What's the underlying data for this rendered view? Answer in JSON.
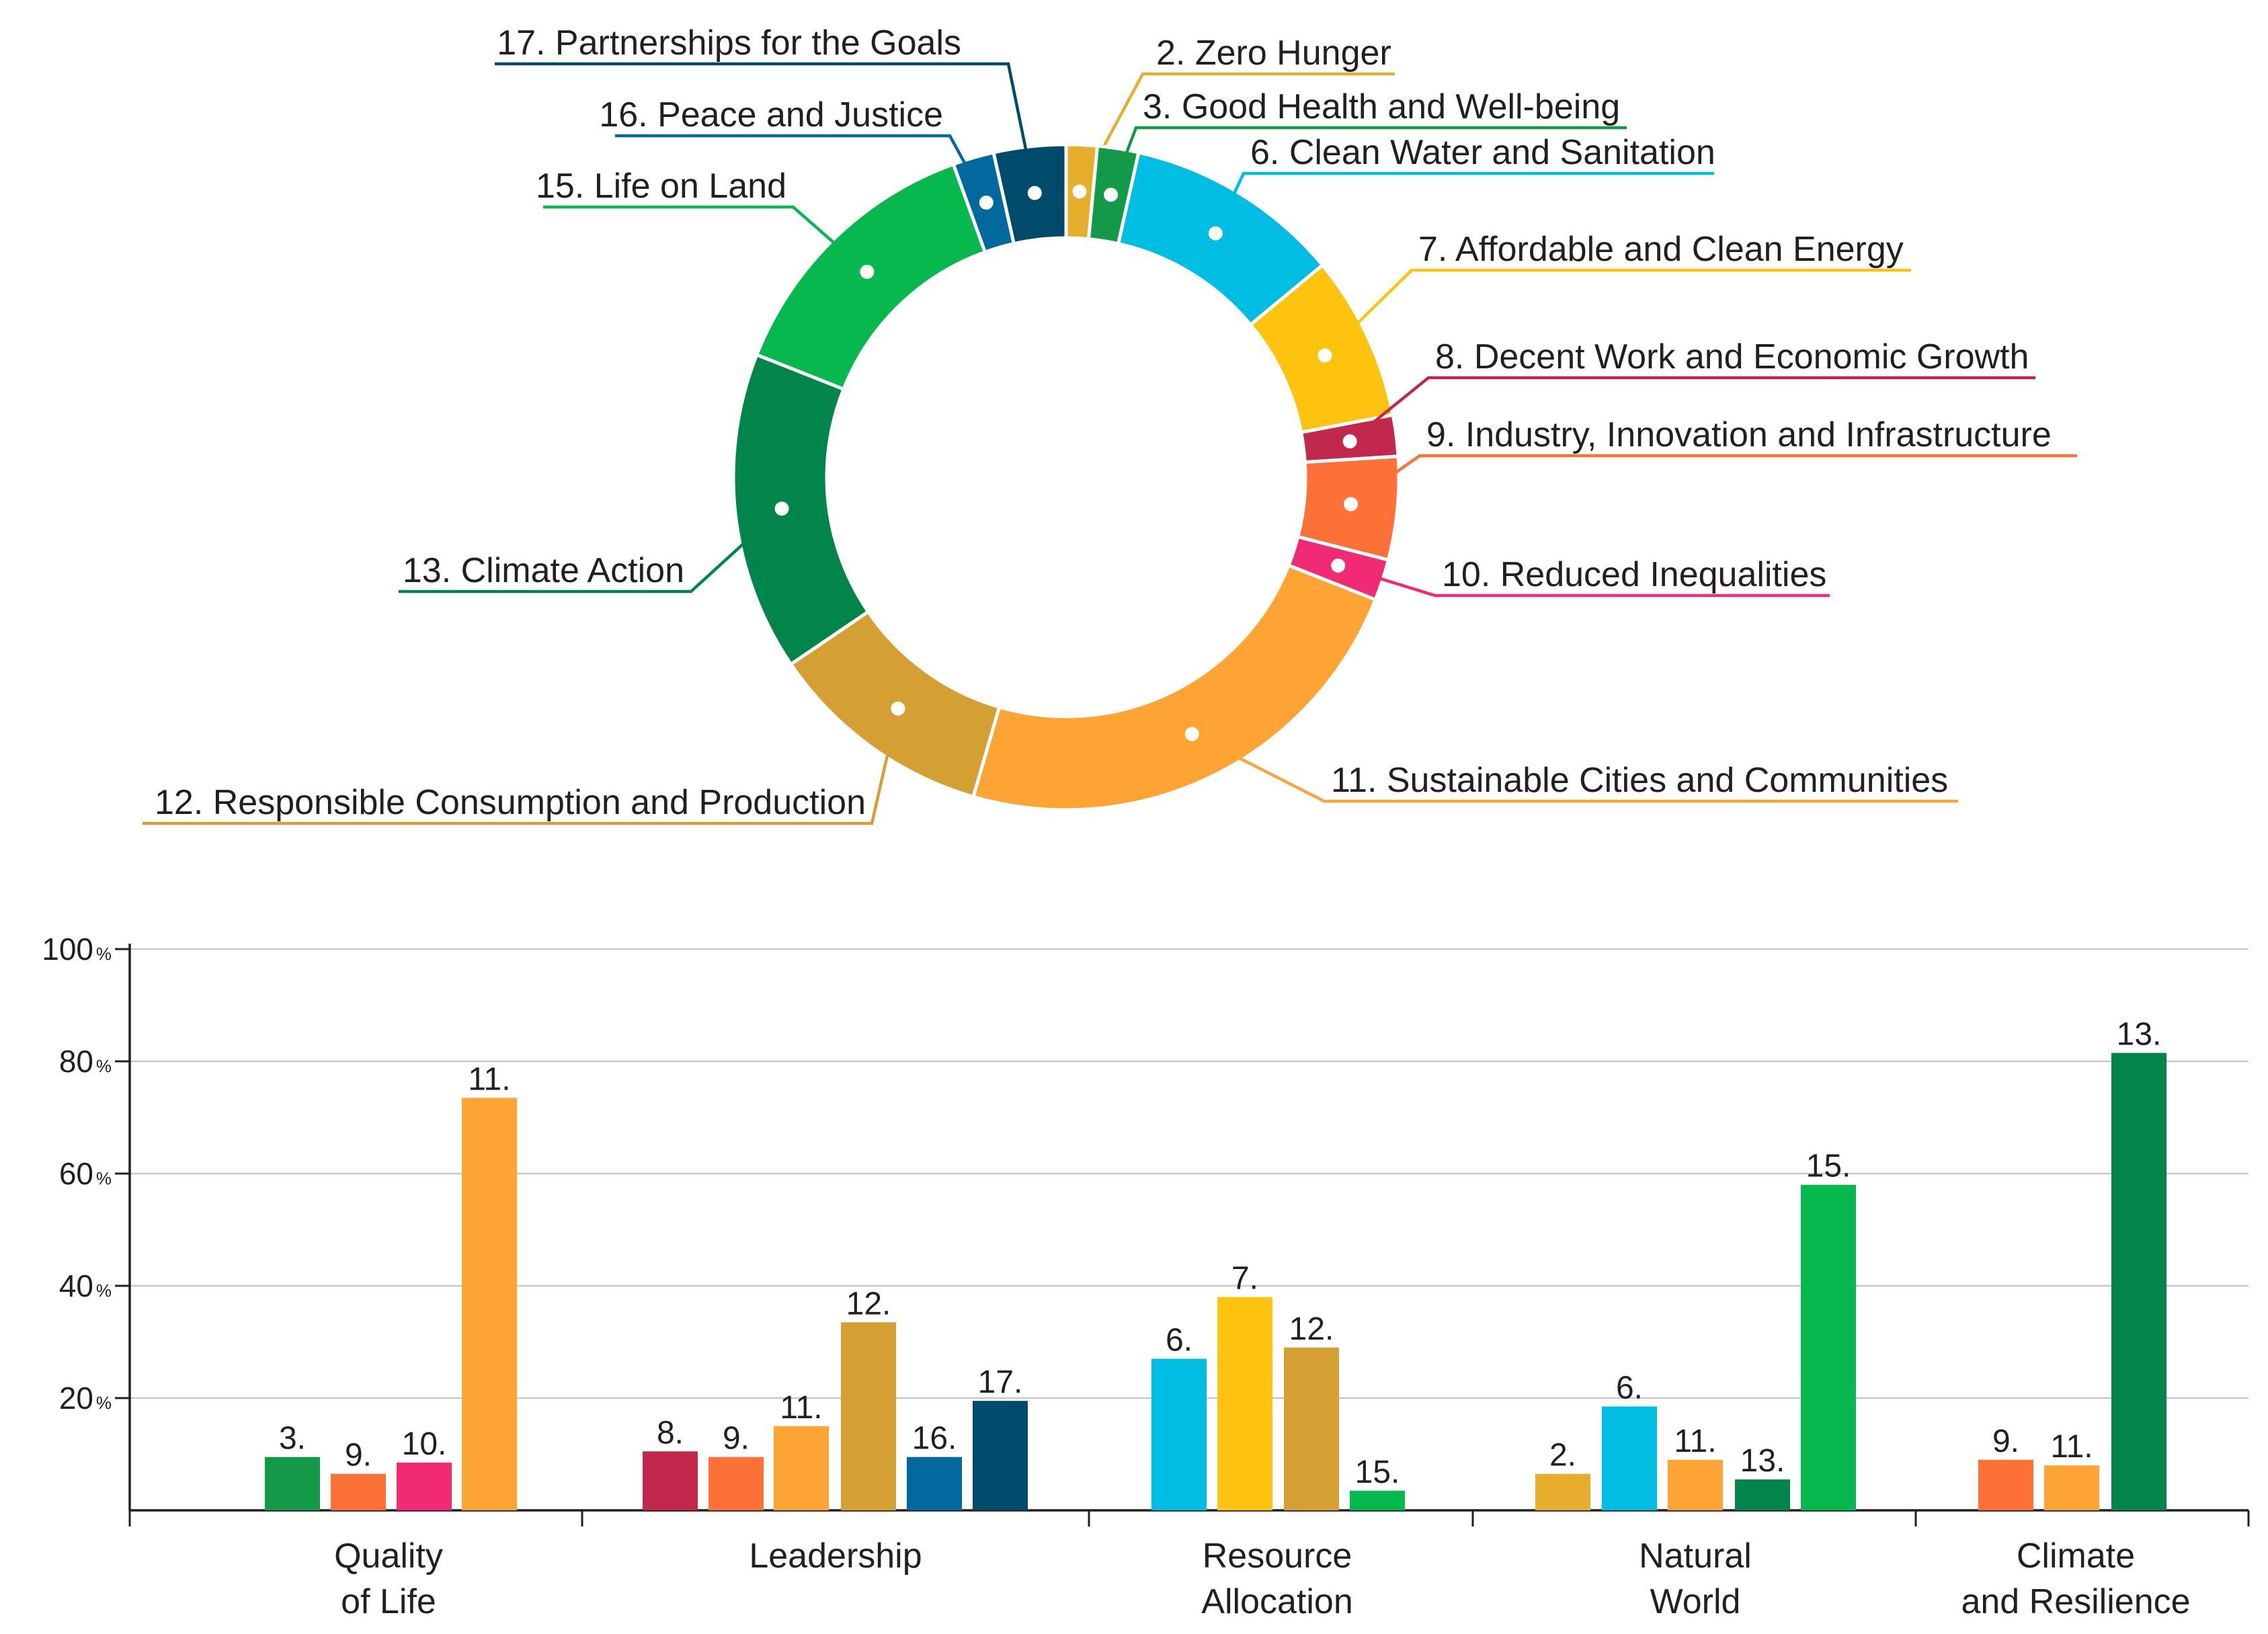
{
  "chart_data": [
    {
      "type": "pie",
      "variant": "donut",
      "slices": [
        {
          "id": "2",
          "label": "2. Zero Hunger",
          "value": 1.5,
          "color": "#e5ae2c"
        },
        {
          "id": "3",
          "label": "3. Good Health and Well-being",
          "value": 2.0,
          "color": "#139a49"
        },
        {
          "id": "6",
          "label": "6. Clean Water and Sanitation",
          "value": 10.5,
          "color": "#00bde3"
        },
        {
          "id": "7",
          "label": "7. Affordable and Clean Energy",
          "value": 8.0,
          "color": "#fdc30e"
        },
        {
          "id": "8",
          "label": "8. Decent Work and Economic Growth",
          "value": 2.0,
          "color": "#c2284c"
        },
        {
          "id": "9",
          "label": "9. Industry, Innovation and Infrastructure",
          "value": 5.0,
          "color": "#fd7139"
        },
        {
          "id": "10",
          "label": "10. Reduced Inequalities",
          "value": 2.0,
          "color": "#f12a74"
        },
        {
          "id": "11",
          "label": "11. Sustainable Cities and Communities",
          "value": 23.5,
          "color": "#fea434"
        },
        {
          "id": "12",
          "label": "12. Responsible Consumption and Production",
          "value": 11.0,
          "color": "#d49f33"
        },
        {
          "id": "13",
          "label": "13. Climate Action",
          "value": 15.5,
          "color": "#01854a"
        },
        {
          "id": "15",
          "label": "15. Life on Land",
          "value": 13.5,
          "color": "#07b84e"
        },
        {
          "id": "16",
          "label": "16. Peace and Justice",
          "value": 2.0,
          "color": "#01699e"
        },
        {
          "id": "17",
          "label": "17. Partnerships for the Goals",
          "value": 3.5,
          "color": "#004a6c"
        }
      ]
    },
    {
      "type": "bar",
      "ylim": [
        0,
        100
      ],
      "yticks": [
        {
          "value": 100,
          "label": "100",
          "unit": "%"
        },
        {
          "value": 80,
          "label": "80",
          "unit": "%"
        },
        {
          "value": 60,
          "label": "60",
          "unit": "%"
        },
        {
          "value": 40,
          "label": "40",
          "unit": "%"
        },
        {
          "value": 20,
          "label": "20",
          "unit": "%"
        }
      ],
      "groups": [
        {
          "label": [
            "Quality",
            "of Life"
          ],
          "bars": [
            {
              "label": "3.",
              "value": 9.5,
              "color": "#139a49"
            },
            {
              "label": "9.",
              "value": 6.5,
              "color": "#fd7139"
            },
            {
              "label": "10.",
              "value": 8.5,
              "color": "#f12a74"
            },
            {
              "label": "11.",
              "value": 73.5,
              "color": "#fea434"
            }
          ]
        },
        {
          "label": [
            "Leadership"
          ],
          "bars": [
            {
              "label": "8.",
              "value": 10.5,
              "color": "#c2284c"
            },
            {
              "label": "9.",
              "value": 9.5,
              "color": "#fd7139"
            },
            {
              "label": "11.",
              "value": 15.0,
              "color": "#fea434"
            },
            {
              "label": "12.",
              "value": 33.5,
              "color": "#d49f33"
            },
            {
              "label": "16.",
              "value": 9.5,
              "color": "#01699e"
            },
            {
              "label": "17.",
              "value": 19.5,
              "color": "#004a6c"
            }
          ]
        },
        {
          "label": [
            "Resource",
            "Allocation"
          ],
          "bars": [
            {
              "label": "6.",
              "value": 27.0,
              "color": "#00bde3"
            },
            {
              "label": "7.",
              "value": 38.0,
              "color": "#fdc30e"
            },
            {
              "label": "12.",
              "value": 29.0,
              "color": "#d49f33"
            },
            {
              "label": "15.",
              "value": 3.5,
              "color": "#07b84e"
            }
          ]
        },
        {
          "label": [
            "Natural",
            "World"
          ],
          "bars": [
            {
              "label": "2.",
              "value": 6.5,
              "color": "#e5ae2c"
            },
            {
              "label": "6.",
              "value": 18.5,
              "color": "#00bde3"
            },
            {
              "label": "11.",
              "value": 9.0,
              "color": "#fea434"
            },
            {
              "label": "13.",
              "value": 5.5,
              "color": "#01854a"
            },
            {
              "label": "15.",
              "value": 58.0,
              "color": "#07b84e"
            }
          ]
        },
        {
          "label": [
            "Climate",
            "and Resilience"
          ],
          "bars": [
            {
              "label": "9.",
              "value": 9.0,
              "color": "#fd7139"
            },
            {
              "label": "11.",
              "value": 8.0,
              "color": "#fea434"
            },
            {
              "label": "13.",
              "value": 81.5,
              "color": "#01854a"
            }
          ]
        }
      ]
    }
  ]
}
